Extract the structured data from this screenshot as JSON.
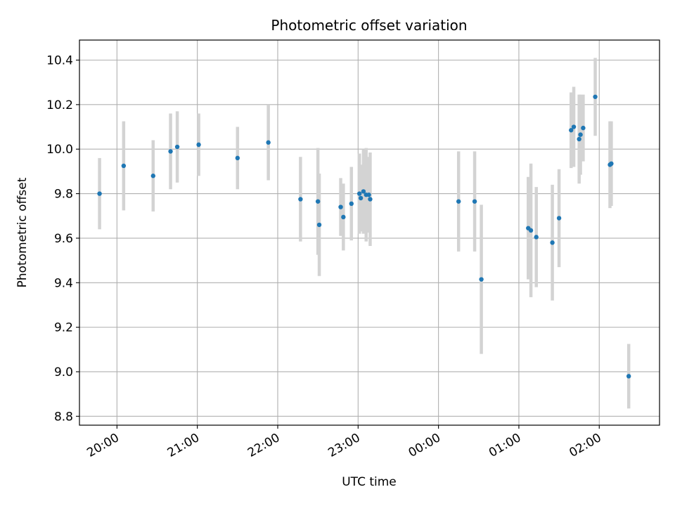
{
  "chart_data": {
    "type": "scatter",
    "title": "Photometric offset variation",
    "xlabel": "UTC time",
    "ylabel": "Photometric offset",
    "x_is_time": true,
    "xlim": [
      "19:32",
      "02:45"
    ],
    "ylim": [
      8.76,
      10.49
    ],
    "grid": true,
    "x_ticks": [
      "20:00",
      "21:00",
      "22:00",
      "23:00",
      "00:00",
      "01:00",
      "02:00"
    ],
    "y_ticks": [
      8.8,
      9.0,
      9.2,
      9.4,
      9.6,
      9.8,
      10.0,
      10.2,
      10.4
    ],
    "marker_color": "#1f77b4",
    "errorbar_color": "#d3d3d3",
    "series": [
      {
        "points": [
          {
            "x": "19:47",
            "y": 9.8,
            "err": 0.16
          },
          {
            "x": "20:05",
            "y": 9.925,
            "err": 0.2
          },
          {
            "x": "20:27",
            "y": 9.88,
            "err": 0.16
          },
          {
            "x": "20:40",
            "y": 9.99,
            "err": 0.17
          },
          {
            "x": "20:45",
            "y": 10.01,
            "err": 0.16
          },
          {
            "x": "21:01",
            "y": 10.02,
            "err": 0.14
          },
          {
            "x": "21:30",
            "y": 9.96,
            "err": 0.14
          },
          {
            "x": "21:53",
            "y": 10.03,
            "err": 0.17
          },
          {
            "x": "22:17",
            "y": 9.775,
            "err": 0.19
          },
          {
            "x": "22:30",
            "y": 9.765,
            "err": 0.24
          },
          {
            "x": "22:31",
            "y": 9.66,
            "err": 0.23
          },
          {
            "x": "22:47",
            "y": 9.74,
            "err": 0.13
          },
          {
            "x": "22:49",
            "y": 9.695,
            "err": 0.15
          },
          {
            "x": "22:55",
            "y": 9.755,
            "err": 0.165
          },
          {
            "x": "23:01",
            "y": 9.8,
            "err": 0.18
          },
          {
            "x": "23:02",
            "y": 9.78,
            "err": 0.15
          },
          {
            "x": "23:04",
            "y": 9.81,
            "err": 0.19
          },
          {
            "x": "23:06",
            "y": 9.795,
            "err": 0.21
          },
          {
            "x": "23:08",
            "y": 9.795,
            "err": 0.17
          },
          {
            "x": "23:09",
            "y": 9.775,
            "err": 0.21
          },
          {
            "x": "00:15",
            "y": 9.765,
            "err": 0.225
          },
          {
            "x": "00:27",
            "y": 9.765,
            "err": 0.225
          },
          {
            "x": "00:32",
            "y": 9.415,
            "err": 0.335
          },
          {
            "x": "01:07",
            "y": 9.645,
            "err": 0.23
          },
          {
            "x": "01:09",
            "y": 9.635,
            "err": 0.3
          },
          {
            "x": "01:13",
            "y": 9.605,
            "err": 0.225
          },
          {
            "x": "01:25",
            "y": 9.58,
            "err": 0.26
          },
          {
            "x": "01:30",
            "y": 9.69,
            "err": 0.22
          },
          {
            "x": "01:39",
            "y": 10.085,
            "err": 0.17
          },
          {
            "x": "01:41",
            "y": 10.1,
            "err": 0.18
          },
          {
            "x": "01:45",
            "y": 10.045,
            "err": 0.2
          },
          {
            "x": "01:46",
            "y": 10.065,
            "err": 0.18
          },
          {
            "x": "01:48",
            "y": 10.095,
            "err": 0.15
          },
          {
            "x": "01:57",
            "y": 10.235,
            "err": 0.175
          },
          {
            "x": "02:08",
            "y": 9.93,
            "err": 0.195
          },
          {
            "x": "02:09",
            "y": 9.935,
            "err": 0.19
          },
          {
            "x": "02:22",
            "y": 8.98,
            "err": 0.145
          }
        ]
      }
    ]
  }
}
